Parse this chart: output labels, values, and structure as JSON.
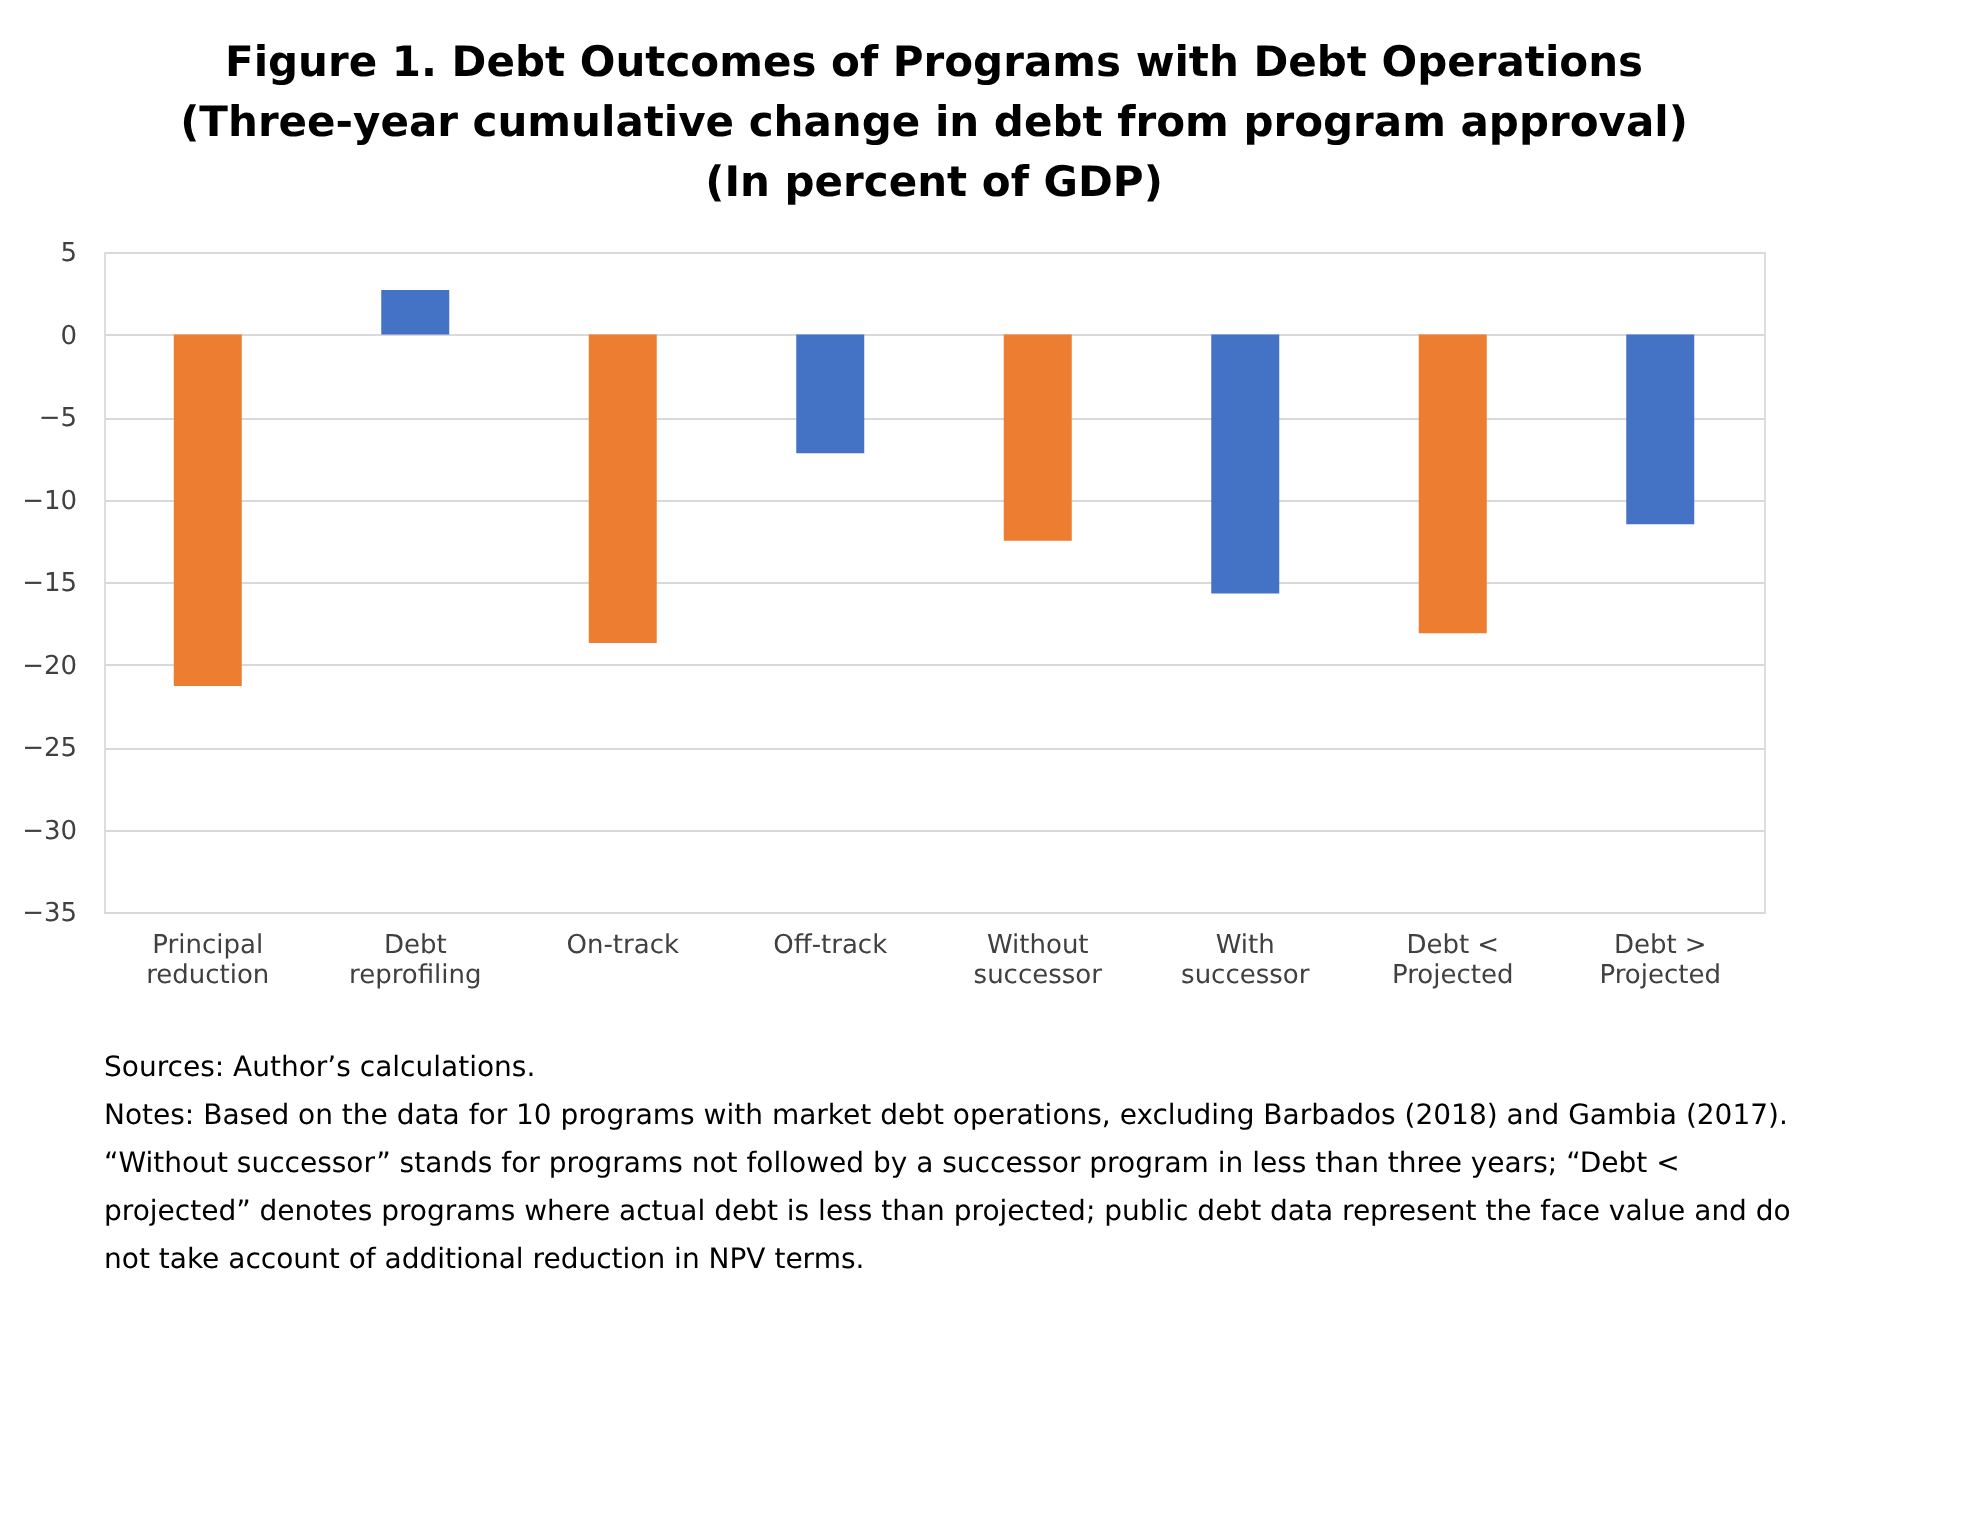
{
  "chart_data": {
    "type": "bar",
    "title": "Figure 1. Debt Outcomes of Programs with Debt Operations\n(Three-year cumulative change in debt from program approval)\n(In percent of GDP)",
    "categories": [
      "Principal reduction",
      "Debt reprofiling",
      "On-track",
      "Off-track",
      "Without successor",
      "With successor",
      "Debt < Projected",
      "Debt > Projected"
    ],
    "values": [
      -21.3,
      2.7,
      -18.7,
      -7.2,
      -12.5,
      -15.7,
      -18.1,
      -11.5
    ],
    "colors": [
      "#ed7d31",
      "#4472c4",
      "#ed7d31",
      "#4472c4",
      "#ed7d31",
      "#4472c4",
      "#ed7d31",
      "#4472c4"
    ],
    "ylim": [
      -35,
      5
    ],
    "yticks": [
      -35,
      -30,
      -25,
      -20,
      -15,
      -10,
      -5,
      0,
      5
    ],
    "grid": "y",
    "annotations": [
      "Sources: Author’s calculations.",
      "Notes: Based on the data for 10 programs with market debt operations, excluding Barbados (2018) and Gambia (2017). “Without successor” stands for programs not followed by a successor program in less than three years; “Debt < projected” denotes programs where actual debt is less than projected; public debt data represent the face value and do not take account of additional reduction in NPV terms."
    ]
  }
}
